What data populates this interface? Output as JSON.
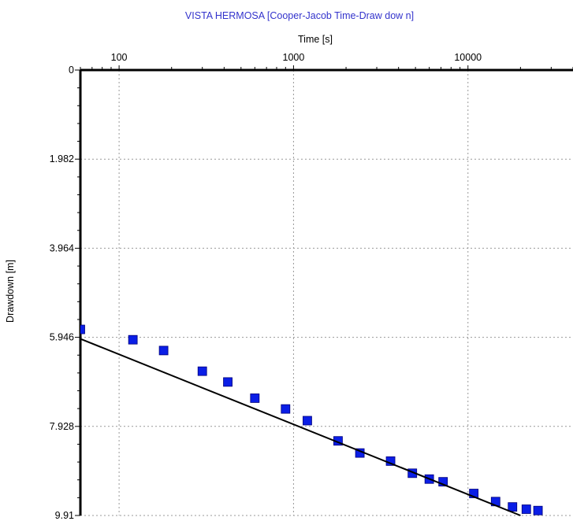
{
  "chart_data": {
    "type": "scatter",
    "title": "VISTA HERMOSA [Cooper-Jacob Time-Draw dow n]",
    "xlabel": "Time [s]",
    "ylabel": "Drawdown [m]",
    "x_scale": "log",
    "x_axis_position": "top",
    "y_inverted": true,
    "xlim": [
      60,
      40000
    ],
    "ylim": [
      0,
      9.91
    ],
    "x_ticks": [
      100,
      1000,
      10000
    ],
    "x_tick_labels": [
      "100",
      "1000",
      "10000"
    ],
    "y_ticks": [
      0,
      1.982,
      3.964,
      5.946,
      7.928,
      9.91
    ],
    "y_tick_labels": [
      "0",
      "1.982",
      "3.964",
      "5.946",
      "7.928",
      "9.91"
    ],
    "grid": true,
    "colors": {
      "title": "#3333cc",
      "points": "#0a1ee6",
      "point_edge": "#00007a",
      "fit_line": "#000000",
      "grid": "#999999"
    },
    "series": [
      {
        "kind": "points",
        "x": [
          60,
          120,
          180,
          300,
          420,
          600,
          900,
          1200,
          1800,
          2400,
          3600,
          4800,
          6000,
          7200,
          10800,
          14400,
          18000,
          21600,
          25200
        ],
        "y": [
          5.77,
          6.0,
          6.24,
          6.7,
          6.94,
          7.3,
          7.54,
          7.8,
          8.25,
          8.52,
          8.7,
          8.97,
          9.1,
          9.16,
          9.42,
          9.6,
          9.72,
          9.77,
          9.8
        ]
      },
      {
        "kind": "fit-line",
        "x": [
          60,
          20000
        ],
        "y": [
          5.98,
          9.91
        ]
      }
    ]
  }
}
